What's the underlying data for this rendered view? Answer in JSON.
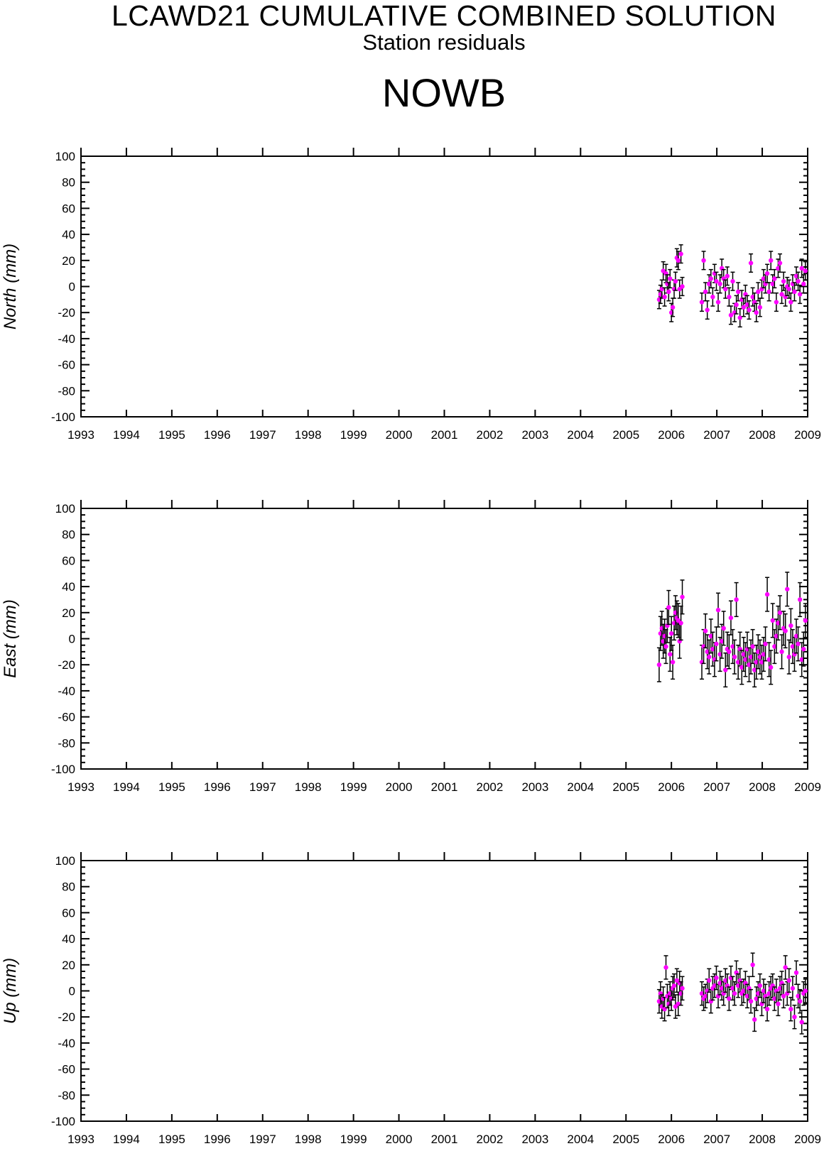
{
  "header": {
    "title": "LCAWD21 CUMULATIVE COMBINED SOLUTION",
    "subtitle": "Station residuals",
    "station": "NOWB"
  },
  "colors": {
    "marker": "#ff00ff",
    "errorbar": "#000000",
    "axis": "#000000"
  },
  "chart_data": [
    {
      "type": "scatter",
      "ylabel": "North (mm)",
      "xlim": [
        1993,
        2009
      ],
      "ylim": [
        -100,
        100
      ],
      "x_ticks": [
        "1993",
        "1994",
        "1995",
        "1996",
        "1997",
        "1998",
        "1999",
        "2000",
        "2001",
        "2002",
        "2003",
        "2004",
        "2005",
        "2006",
        "2007",
        "2008",
        "2009"
      ],
      "y_ticks": [
        "100",
        "80",
        "60",
        "40",
        "20",
        "0",
        "-20",
        "-40",
        "-60",
        "-80",
        "-100"
      ],
      "error_bar_mm": 7,
      "series": [
        {
          "x": [
            2005.73,
            2005.76,
            2005.79,
            2005.82,
            2005.85,
            2005.88,
            2005.91,
            2005.94,
            2005.97,
            2006.0,
            2006.03,
            2006.06,
            2006.09,
            2006.12,
            2006.15,
            2006.18,
            2006.21,
            2006.24,
            2006.67,
            2006.71,
            2006.75,
            2006.79,
            2006.83,
            2006.87,
            2006.91,
            2006.95,
            2006.99,
            2007.03,
            2007.07,
            2007.11,
            2007.15,
            2007.19,
            2007.23,
            2007.27,
            2007.31,
            2007.35,
            2007.39,
            2007.43,
            2007.47,
            2007.51,
            2007.55,
            2007.59,
            2007.63,
            2007.67,
            2007.71,
            2007.75,
            2007.79,
            2007.83,
            2007.87,
            2007.91,
            2007.95,
            2007.99,
            2008.03,
            2008.07,
            2008.11,
            2008.15,
            2008.19,
            2008.23,
            2008.27,
            2008.31,
            2008.35,
            2008.39,
            2008.43,
            2008.47,
            2008.51,
            2008.55,
            2008.59,
            2008.63,
            2008.67,
            2008.71,
            2008.75,
            2008.79,
            2008.83,
            2008.87,
            2008.91,
            2008.95
          ],
          "y": [
            -10,
            -6,
            -2,
            12,
            -8,
            10,
            2,
            -4,
            6,
            -20,
            -16,
            -2,
            4,
            22,
            20,
            -2,
            25,
            0,
            -12,
            20,
            -4,
            -18,
            2,
            6,
            -8,
            10,
            4,
            -12,
            2,
            14,
            6,
            -2,
            8,
            -8,
            -22,
            4,
            -20,
            -14,
            -4,
            -24,
            -10,
            -16,
            -6,
            -14,
            -18,
            18,
            -8,
            -12,
            -20,
            -4,
            -16,
            -2,
            6,
            2,
            10,
            -4,
            20,
            2,
            6,
            -12,
            14,
            18,
            -6,
            4,
            -8,
            0,
            -2,
            -12,
            2,
            -4,
            8,
            4,
            -6,
            14,
            2,
            12
          ]
        }
      ]
    },
    {
      "type": "scatter",
      "ylabel": "East (mm)",
      "xlim": [
        1993,
        2009
      ],
      "ylim": [
        -100,
        100
      ],
      "x_ticks": [
        "1993",
        "1994",
        "1995",
        "1996",
        "1997",
        "1998",
        "1999",
        "2000",
        "2001",
        "2002",
        "2003",
        "2004",
        "2005",
        "2006",
        "2007",
        "2008",
        "2009"
      ],
      "y_ticks": [
        "100",
        "80",
        "60",
        "40",
        "20",
        "0",
        "-20",
        "-40",
        "-60",
        "-80",
        "-100"
      ],
      "error_bar_mm": 13,
      "series": [
        {
          "x": [
            2005.73,
            2005.76,
            2005.79,
            2005.82,
            2005.85,
            2005.88,
            2005.91,
            2005.94,
            2005.97,
            2006.0,
            2006.03,
            2006.06,
            2006.09,
            2006.12,
            2006.15,
            2006.18,
            2006.21,
            2006.24,
            2006.67,
            2006.71,
            2006.75,
            2006.79,
            2006.83,
            2006.87,
            2006.91,
            2006.95,
            2006.99,
            2007.03,
            2007.07,
            2007.11,
            2007.15,
            2007.19,
            2007.23,
            2007.27,
            2007.31,
            2007.35,
            2007.39,
            2007.43,
            2007.47,
            2007.51,
            2007.55,
            2007.59,
            2007.63,
            2007.67,
            2007.71,
            2007.75,
            2007.79,
            2007.83,
            2007.87,
            2007.91,
            2007.95,
            2007.99,
            2008.03,
            2008.07,
            2008.11,
            2008.15,
            2008.19,
            2008.23,
            2008.27,
            2008.31,
            2008.35,
            2008.39,
            2008.43,
            2008.47,
            2008.51,
            2008.55,
            2008.59,
            2008.63,
            2008.67,
            2008.71,
            2008.75,
            2008.79,
            2008.83,
            2008.87,
            2008.91,
            2008.95
          ],
          "y": [
            -20,
            4,
            8,
            -2,
            2,
            -6,
            10,
            24,
            -12,
            4,
            -18,
            12,
            20,
            16,
            14,
            -2,
            12,
            32,
            -18,
            -6,
            6,
            -10,
            -14,
            2,
            -8,
            -16,
            -4,
            22,
            -12,
            -2,
            8,
            -24,
            -8,
            -10,
            16,
            -6,
            -14,
            30,
            -18,
            -8,
            -22,
            -12,
            -16,
            -8,
            -20,
            -14,
            -6,
            -24,
            -18,
            -10,
            -14,
            -18,
            -12,
            -4,
            34,
            -16,
            -22,
            14,
            -6,
            2,
            12,
            20,
            -10,
            8,
            6,
            38,
            -14,
            10,
            -6,
            -12,
            2,
            -4,
            30,
            -16,
            -8,
            14
          ]
        }
      ]
    },
    {
      "type": "scatter",
      "ylabel": "Up (mm)",
      "xlim": [
        1993,
        2009
      ],
      "ylim": [
        -100,
        100
      ],
      "x_ticks": [
        "1993",
        "1994",
        "1995",
        "1996",
        "1997",
        "1998",
        "1999",
        "2000",
        "2001",
        "2002",
        "2003",
        "2004",
        "2005",
        "2006",
        "2007",
        "2008",
        "2009"
      ],
      "y_ticks": [
        "100",
        "80",
        "60",
        "40",
        "20",
        "0",
        "-20",
        "-40",
        "-60",
        "-80",
        "-100"
      ],
      "error_bar_mm": 9,
      "series": [
        {
          "x": [
            2005.73,
            2005.76,
            2005.79,
            2005.82,
            2005.85,
            2005.88,
            2005.91,
            2005.94,
            2005.97,
            2006.0,
            2006.03,
            2006.06,
            2006.09,
            2006.12,
            2006.15,
            2006.18,
            2006.21,
            2006.24,
            2006.67,
            2006.71,
            2006.75,
            2006.79,
            2006.83,
            2006.87,
            2006.91,
            2006.95,
            2006.99,
            2007.03,
            2007.07,
            2007.11,
            2007.15,
            2007.19,
            2007.23,
            2007.27,
            2007.31,
            2007.35,
            2007.39,
            2007.43,
            2007.47,
            2007.51,
            2007.55,
            2007.59,
            2007.63,
            2007.67,
            2007.71,
            2007.75,
            2007.79,
            2007.83,
            2007.87,
            2007.91,
            2007.95,
            2007.99,
            2008.03,
            2008.07,
            2008.11,
            2008.15,
            2008.19,
            2008.23,
            2008.27,
            2008.31,
            2008.35,
            2008.39,
            2008.43,
            2008.47,
            2008.51,
            2008.55,
            2008.59,
            2008.63,
            2008.67,
            2008.71,
            2008.75,
            2008.79,
            2008.83,
            2008.87,
            2008.91,
            2008.95
          ],
          "y": [
            -8,
            -2,
            -12,
            -6,
            -14,
            18,
            -4,
            -10,
            -2,
            -6,
            2,
            4,
            -12,
            8,
            -10,
            6,
            -2,
            2,
            -2,
            -6,
            -4,
            0,
            8,
            -8,
            2,
            4,
            10,
            -4,
            6,
            2,
            -2,
            8,
            4,
            -6,
            10,
            2,
            -2,
            14,
            4,
            8,
            -2,
            0,
            6,
            -4,
            2,
            -8,
            20,
            -22,
            -6,
            -2,
            4,
            -10,
            0,
            -4,
            -14,
            -2,
            2,
            4,
            -6,
            0,
            -10,
            2,
            6,
            -4,
            18,
            -2,
            8,
            -14,
            2,
            -20,
            14,
            -4,
            -8,
            -24,
            -2,
            0
          ]
        }
      ]
    }
  ]
}
